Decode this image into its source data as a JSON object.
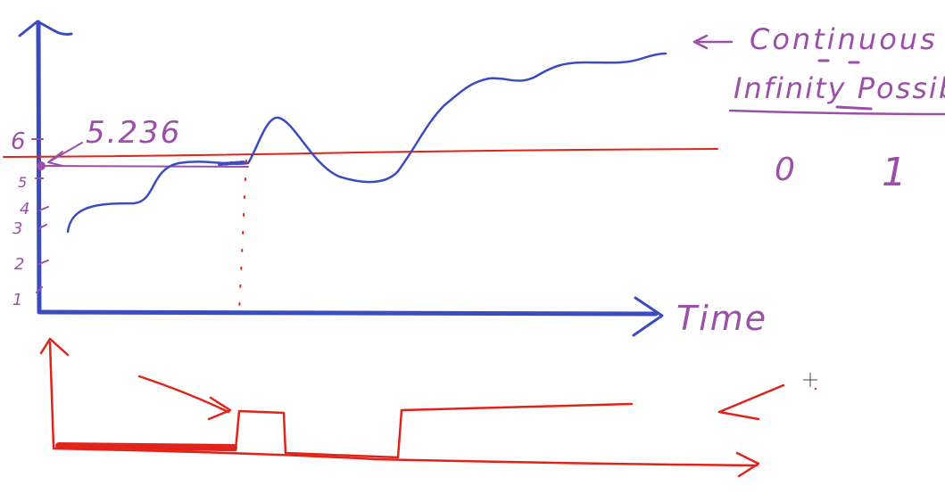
{
  "colors": {
    "blue": "#3b4cc0",
    "red": "#e0241b",
    "purple": "#9b4fa8",
    "background": "#ffffff"
  },
  "analog": {
    "x_axis_label": "Time",
    "y_ticks": [
      "1",
      "2",
      "3",
      "4",
      "5",
      "6"
    ],
    "sample_value": "5.236"
  },
  "notes": {
    "continuous": "Continuous",
    "infinity": "Infinity Possib",
    "digital_levels": [
      "0",
      "1"
    ]
  },
  "cursor": {
    "icon": "crosshair-cursor-icon"
  }
}
